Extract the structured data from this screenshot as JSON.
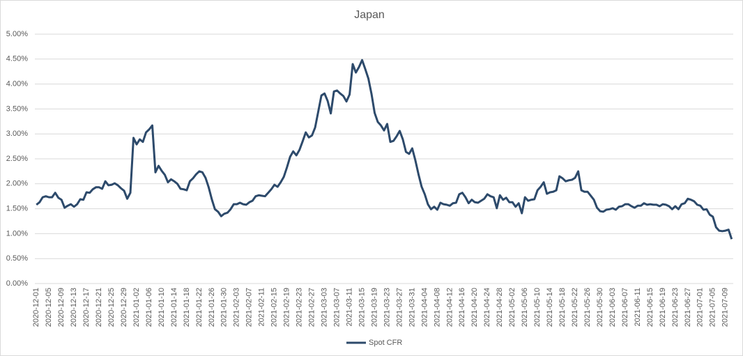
{
  "chart_data": {
    "type": "line",
    "title": "Japan",
    "categories": [
      "2020-12-01",
      null,
      null,
      null,
      "2020-12-05",
      null,
      null,
      null,
      "2020-12-09",
      null,
      null,
      null,
      "2020-12-13",
      null,
      null,
      null,
      "2020-12-17",
      null,
      null,
      null,
      "2020-12-21",
      null,
      null,
      null,
      "2020-12-25",
      null,
      null,
      null,
      "2020-12-29",
      null,
      null,
      null,
      "2021-01-02",
      null,
      null,
      null,
      "2021-01-06",
      null,
      null,
      null,
      "2021-01-10",
      null,
      null,
      null,
      "2021-01-14",
      null,
      null,
      null,
      "2021-01-18",
      null,
      null,
      null,
      "2021-01-22",
      null,
      null,
      null,
      "2021-01-26",
      null,
      null,
      null,
      "2021-01-30",
      null,
      null,
      null,
      "2021-02-03",
      null,
      null,
      null,
      "2021-02-07",
      null,
      null,
      null,
      "2021-02-11",
      null,
      null,
      null,
      "2021-02-15",
      null,
      null,
      null,
      "2021-02-19",
      null,
      null,
      null,
      "2021-02-23",
      null,
      null,
      null,
      "2021-02-27",
      null,
      null,
      null,
      "2021-03-03",
      null,
      null,
      null,
      "2021-03-07",
      null,
      null,
      null,
      "2021-03-11",
      null,
      null,
      null,
      "2021-03-15",
      null,
      null,
      null,
      "2021-03-19",
      null,
      null,
      null,
      "2021-03-23",
      null,
      null,
      null,
      "2021-03-27",
      null,
      null,
      null,
      "2021-03-31",
      null,
      null,
      null,
      "2021-04-04",
      null,
      null,
      null,
      "2021-04-08",
      null,
      null,
      null,
      "2021-04-12",
      null,
      null,
      null,
      "2021-04-16",
      null,
      null,
      null,
      "2021-04-20",
      null,
      null,
      null,
      "2021-04-24",
      null,
      null,
      null,
      "2021-04-28",
      null,
      null,
      null,
      "2021-05-02",
      null,
      null,
      null,
      "2021-05-06",
      null,
      null,
      null,
      "2021-05-10",
      null,
      null,
      null,
      "2021-05-14",
      null,
      null,
      null,
      "2021-05-18",
      null,
      null,
      null,
      "2021-05-22",
      null,
      null,
      null,
      "2021-05-26",
      null,
      null,
      null,
      "2021-05-30",
      null,
      null,
      null,
      "2021-06-03",
      null,
      null,
      null,
      "2021-06-07",
      null,
      null,
      null,
      "2021-06-11",
      null,
      null,
      null,
      "2021-06-15",
      null,
      null,
      null,
      "2021-06-19",
      null,
      null,
      null,
      "2021-06-23",
      null,
      null,
      null,
      "2021-06-27",
      null,
      null,
      null,
      "2021-07-01",
      null,
      null,
      null,
      "2021-07-05",
      null,
      null,
      null,
      "2021-07-09",
      null,
      null
    ],
    "series": [
      {
        "name": "Spot CFR",
        "color": "#2d4a6b",
        "values": [
          1.58,
          1.63,
          1.73,
          1.75,
          1.73,
          1.73,
          1.82,
          1.72,
          1.68,
          1.52,
          1.56,
          1.59,
          1.54,
          1.59,
          1.69,
          1.68,
          1.83,
          1.82,
          1.89,
          1.93,
          1.93,
          1.9,
          2.05,
          1.97,
          1.98,
          2.01,
          1.97,
          1.91,
          1.86,
          1.7,
          1.82,
          2.92,
          2.79,
          2.89,
          2.84,
          3.03,
          3.09,
          3.17,
          2.23,
          2.36,
          2.26,
          2.18,
          2.03,
          2.09,
          2.05,
          2.0,
          1.9,
          1.89,
          1.87,
          2.05,
          2.11,
          2.19,
          2.25,
          2.23,
          2.12,
          1.93,
          1.69,
          1.49,
          1.44,
          1.35,
          1.4,
          1.42,
          1.49,
          1.59,
          1.59,
          1.62,
          1.59,
          1.58,
          1.63,
          1.66,
          1.75,
          1.77,
          1.76,
          1.75,
          1.82,
          1.89,
          1.98,
          1.94,
          2.03,
          2.14,
          2.33,
          2.54,
          2.65,
          2.57,
          2.68,
          2.85,
          3.03,
          2.93,
          2.97,
          3.13,
          3.45,
          3.77,
          3.81,
          3.66,
          3.41,
          3.85,
          3.87,
          3.81,
          3.76,
          3.65,
          3.79,
          4.4,
          4.23,
          4.34,
          4.48,
          4.3,
          4.11,
          3.8,
          3.42,
          3.24,
          3.17,
          3.07,
          3.2,
          2.84,
          2.86,
          2.95,
          3.06,
          2.89,
          2.64,
          2.6,
          2.71,
          2.47,
          2.19,
          1.94,
          1.79,
          1.59,
          1.49,
          1.54,
          1.48,
          1.62,
          1.59,
          1.58,
          1.56,
          1.61,
          1.62,
          1.79,
          1.82,
          1.73,
          1.61,
          1.68,
          1.63,
          1.62,
          1.66,
          1.7,
          1.79,
          1.75,
          1.73,
          1.51,
          1.77,
          1.68,
          1.72,
          1.63,
          1.63,
          1.54,
          1.61,
          1.41,
          1.73,
          1.66,
          1.68,
          1.69,
          1.87,
          1.94,
          2.03,
          1.8,
          1.83,
          1.84,
          1.87,
          2.15,
          2.11,
          2.05,
          2.07,
          2.08,
          2.12,
          2.25,
          1.87,
          1.84,
          1.84,
          1.76,
          1.68,
          1.52,
          1.45,
          1.44,
          1.48,
          1.49,
          1.51,
          1.48,
          1.54,
          1.55,
          1.59,
          1.59,
          1.55,
          1.52,
          1.56,
          1.56,
          1.61,
          1.58,
          1.59,
          1.58,
          1.58,
          1.55,
          1.59,
          1.58,
          1.55,
          1.49,
          1.55,
          1.49,
          1.59,
          1.61,
          1.7,
          1.68,
          1.65,
          1.58,
          1.56,
          1.48,
          1.49,
          1.38,
          1.34,
          1.13,
          1.06,
          1.05,
          1.06,
          1.08,
          0.89
        ]
      }
    ],
    "ylim": [
      0,
      5
    ],
    "yticks": [
      {
        "value": 0,
        "label": "0.00%"
      },
      {
        "value": 0.5,
        "label": "0.50%"
      },
      {
        "value": 1,
        "label": "1.00%"
      },
      {
        "value": 1.5,
        "label": "1.50%"
      },
      {
        "value": 2,
        "label": "2.00%"
      },
      {
        "value": 2.5,
        "label": "2.50%"
      },
      {
        "value": 3,
        "label": "3.00%"
      },
      {
        "value": 3.5,
        "label": "3.50%"
      },
      {
        "value": 4,
        "label": "4.00%"
      },
      {
        "value": 4.5,
        "label": "4.50%"
      },
      {
        "value": 5,
        "label": "5.00%"
      }
    ],
    "grid": true,
    "legend": "bottom"
  }
}
